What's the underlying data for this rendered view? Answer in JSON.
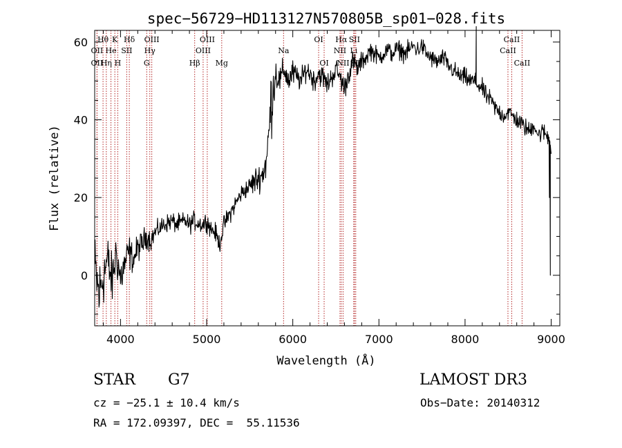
{
  "chart_data": {
    "type": "line",
    "title": "spec−56729−HD113127N570805B_sp01−028.fits",
    "xlabel": "Wavelength (Å)",
    "ylabel": "Flux (relative)",
    "xlim": [
      3700,
      9100
    ],
    "ylim": [
      -13,
      63
    ],
    "x_ticks": [
      4000,
      5000,
      6000,
      7000,
      8000,
      9000
    ],
    "y_ticks": [
      0,
      20,
      40,
      60
    ],
    "x_tick_labels": [
      "4000",
      "5000",
      "6000",
      "7000",
      "8000",
      "9000"
    ],
    "y_tick_labels": [
      "0",
      "20",
      "40",
      "60"
    ],
    "series": [
      {
        "name": "flux",
        "x": [
          3700,
          3750,
          3800,
          3850,
          3900,
          3950,
          4000,
          4050,
          4100,
          4150,
          4200,
          4250,
          4300,
          4350,
          4400,
          4450,
          4500,
          4550,
          4600,
          4650,
          4700,
          4750,
          4800,
          4850,
          4900,
          4950,
          5000,
          5050,
          5100,
          5150,
          5200,
          5250,
          5300,
          5350,
          5400,
          5450,
          5500,
          5550,
          5600,
          5650,
          5700,
          5750,
          5800,
          5850,
          5900,
          5950,
          6000,
          6050,
          6100,
          6150,
          6200,
          6250,
          6300,
          6350,
          6400,
          6450,
          6500,
          6550,
          6600,
          6650,
          6700,
          6750,
          6800,
          6850,
          6900,
          6950,
          7000,
          7050,
          7100,
          7150,
          7200,
          7250,
          7300,
          7350,
          7400,
          7450,
          7500,
          7550,
          7600,
          7650,
          7700,
          7750,
          7800,
          7850,
          7900,
          7950,
          8000,
          8050,
          8100,
          8150,
          8200,
          8250,
          8300,
          8350,
          8400,
          8450,
          8500,
          8550,
          8600,
          8650,
          8700,
          8750,
          8800,
          8850,
          8900,
          8950,
          8980,
          9000
        ],
        "y": [
          2,
          -5,
          0,
          4,
          -2,
          6,
          -1,
          3,
          6,
          4,
          7,
          8,
          10,
          9,
          11,
          12,
          13,
          13.5,
          14,
          13,
          13.5,
          14,
          13,
          14,
          13.5,
          13,
          14,
          12,
          11,
          8,
          13,
          15,
          17,
          19,
          21,
          22,
          23,
          24,
          25,
          26,
          30,
          45,
          52,
          50,
          53,
          50,
          52,
          51,
          50,
          53,
          52,
          50,
          52,
          51,
          49,
          51,
          53,
          51,
          48,
          52,
          55,
          53,
          55,
          56,
          58,
          57,
          56,
          57,
          58,
          57,
          58,
          58,
          57,
          58,
          59,
          58,
          59,
          57,
          56,
          55,
          55,
          56,
          54,
          53,
          52,
          51,
          51,
          50,
          50,
          49,
          48,
          46,
          45,
          43,
          42,
          41,
          42,
          41,
          40,
          39,
          38,
          37,
          39,
          36,
          37,
          36,
          35,
          33
        ],
        "noise": [
          8,
          8,
          7,
          6,
          6,
          5,
          5,
          4,
          4,
          3,
          3,
          3,
          2.5,
          2.5,
          2,
          2,
          2,
          2,
          2,
          2,
          2,
          2,
          2,
          2,
          2,
          2,
          2,
          2,
          2,
          2,
          2,
          2,
          2,
          2,
          2,
          2,
          2,
          3,
          3,
          3,
          5,
          8,
          4,
          3,
          3,
          3,
          3,
          2.5,
          2.5,
          2.5,
          2.5,
          2.5,
          2.5,
          2.5,
          2.5,
          2.5,
          2.5,
          2.5,
          2.5,
          2.5,
          2.5,
          2.5,
          2,
          2,
          2,
          2,
          2,
          2,
          2,
          2,
          2,
          2,
          2,
          2,
          2,
          2,
          2,
          2,
          2,
          2,
          2,
          2,
          2,
          2,
          2,
          2,
          2,
          2,
          2,
          2,
          2,
          2,
          2,
          2,
          2,
          2,
          2,
          2,
          2,
          2,
          2,
          2,
          2,
          2,
          2,
          2,
          2,
          2
        ],
        "features": [
          {
            "x": 8130,
            "y": 64,
            "note": "spike"
          },
          {
            "x": 8980,
            "y": 20,
            "note": "drop"
          },
          {
            "x": 8990,
            "y": 0,
            "note": "drop"
          }
        ]
      }
    ],
    "lines": [
      {
        "label": "Hθ",
        "wl": 3797,
        "row": 1
      },
      {
        "label": "OII",
        "wl": 3727,
        "row": 2
      },
      {
        "label": "OII",
        "wl": 3727,
        "row": 3
      },
      {
        "label": "He",
        "wl": 3889,
        "row": 2
      },
      {
        "label": "Hη",
        "wl": 3835,
        "row": 3
      },
      {
        "label": "K",
        "wl": 3934,
        "row": 1
      },
      {
        "label": "H",
        "wl": 3968,
        "row": 3
      },
      {
        "label": "SII",
        "wl": 4072,
        "row": 2
      },
      {
        "label": "Hδ",
        "wl": 4102,
        "row": 1
      },
      {
        "label": "OIII",
        "wl": 4363,
        "row": 1
      },
      {
        "label": "Hγ",
        "wl": 4340,
        "row": 2
      },
      {
        "label": "G",
        "wl": 4304,
        "row": 3
      },
      {
        "label": "OIII",
        "wl": 5007,
        "row": 1
      },
      {
        "label": "OIII",
        "wl": 4959,
        "row": 2
      },
      {
        "label": "Hβ",
        "wl": 4861,
        "row": 3
      },
      {
        "label": "Mg",
        "wl": 5175,
        "row": 3
      },
      {
        "label": "Na",
        "wl": 5893,
        "row": 2
      },
      {
        "label": "OI",
        "wl": 6300,
        "row": 1
      },
      {
        "label": "OI",
        "wl": 6364,
        "row": 3
      },
      {
        "label": "Hα",
        "wl": 6563,
        "row": 1
      },
      {
        "label": "NII",
        "wl": 6548,
        "row": 2
      },
      {
        "label": "NII",
        "wl": 6584,
        "row": 3
      },
      {
        "label": "SII",
        "wl": 6716,
        "row": 1
      },
      {
        "label": "Li",
        "wl": 6708,
        "row": 2
      },
      {
        "label": "SII",
        "wl": 6731,
        "row": 3
      },
      {
        "label": "CaII",
        "wl": 8542,
        "row": 1
      },
      {
        "label": "CaII",
        "wl": 8498,
        "row": 2
      },
      {
        "label": "CaII",
        "wl": 8662,
        "row": 3
      }
    ],
    "line_color": "#b22222"
  },
  "info": {
    "class": "STAR",
    "subclass": "G7",
    "survey": "LAMOST DR3",
    "cz": "cz = −25.1 ± 10.4 km/s",
    "obsdate": "Obs−Date: 20140312",
    "radec": "RA = 172.09397, DEC =  55.11536"
  }
}
